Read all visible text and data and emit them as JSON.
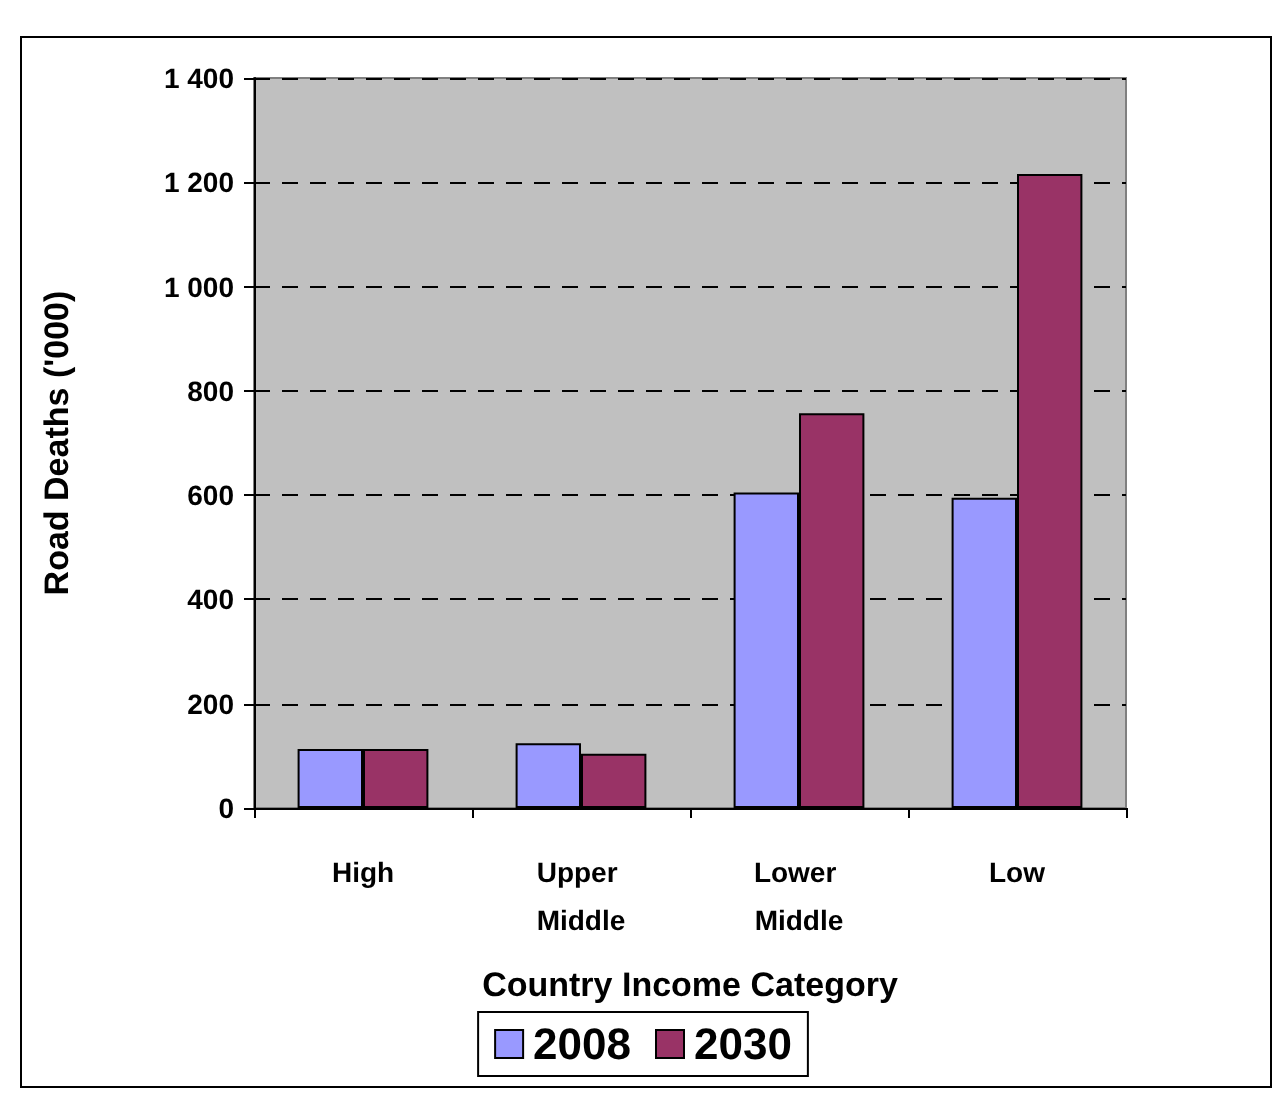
{
  "chart_data": {
    "type": "bar",
    "categories": [
      "High",
      "Upper Middle",
      "Lower Middle",
      "Low"
    ],
    "series": [
      {
        "name": "2008",
        "color": "#9999ff",
        "values": [
          113,
          124,
          605,
          595
        ]
      },
      {
        "name": "2030",
        "color": "#993366",
        "values": [
          113,
          104,
          757,
          1216
        ]
      }
    ],
    "xlabel": "Country Income Category",
    "ylabel": "Road Deaths ('000)",
    "ylim": [
      0,
      1400
    ],
    "yticks": [
      0,
      200,
      400,
      600,
      800,
      {
        "value": 1000,
        "label": "1 000"
      },
      {
        "value": 1200,
        "label": "1 200"
      },
      {
        "value": 1400,
        "label": "1 400"
      }
    ],
    "grid": "y",
    "legend": "bottom"
  }
}
